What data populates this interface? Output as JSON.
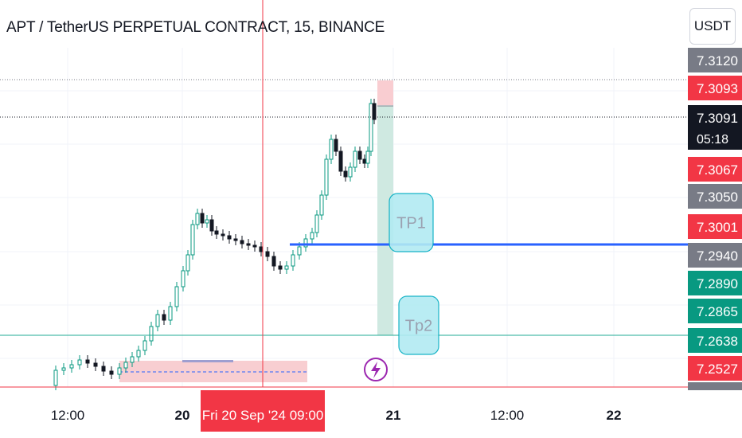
{
  "header": {
    "title": "APT / TetherUS PERPETUAL CONTRACT, 15, BINANCE",
    "currency": "USDT"
  },
  "price_axis": {
    "labels": [
      {
        "value": "7.3120",
        "color": "#787b86"
      },
      {
        "value": "7.3093",
        "color": "#f23645"
      },
      {
        "value": "7.3091",
        "color": "#131722",
        "sub": "05:18"
      },
      {
        "value": "7.3067",
        "color": "#f23645"
      },
      {
        "value": "7.3050",
        "color": "#787b86"
      },
      {
        "value": "7.3001",
        "color": "#f23645"
      },
      {
        "value": "7.2940",
        "color": "#787b86"
      },
      {
        "value": "7.2890",
        "color": "#089981"
      },
      {
        "value": "7.2865",
        "color": "#089981"
      },
      {
        "value": "7.2638",
        "color": "#089981"
      },
      {
        "value": "7.2527",
        "color": "#f23645"
      }
    ]
  },
  "time_axis": {
    "ticks": [
      {
        "label": "12:00"
      },
      {
        "label": "20"
      },
      {
        "label": "21"
      },
      {
        "label": "12:00"
      },
      {
        "label": "22"
      }
    ],
    "crosshair_label": "Fri 20 Sep '24  09:00"
  },
  "annotations": {
    "tp1": "TP1",
    "tp2": "Tp2"
  },
  "colors": {
    "up": "#089981",
    "down": "#f23645",
    "horizontal_line": "#2962ff",
    "cyan_line": "#22ab94",
    "crosshair": "#f23645",
    "annotation_fill": "#b2ebf2",
    "annotation_border": "#00acc1"
  },
  "icons": {
    "flash": "lightning-bolt-icon"
  }
}
